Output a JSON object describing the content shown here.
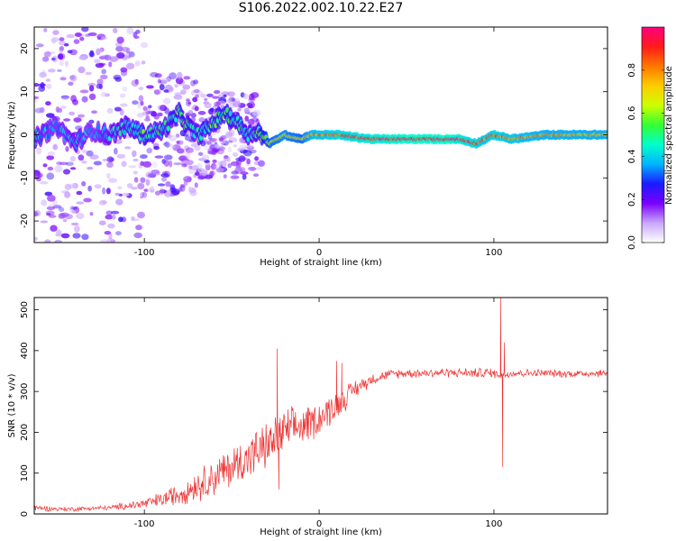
{
  "title": "S106.2022.002.10.22.E27",
  "colors": {
    "snr_line": "#ee3333",
    "frame": "#000000",
    "background": "#ffffff"
  },
  "chart_data": [
    {
      "type": "heatmap",
      "title": "S106.2022.002.10.22.E27",
      "xlabel": "Height of straight line (km)",
      "ylabel": "Frequency (Hz)",
      "xlim": [
        -163,
        165
      ],
      "ylim": [
        -25,
        25
      ],
      "xticks": [
        -100,
        0,
        100
      ],
      "yticks": [
        -20,
        -10,
        0,
        10,
        20
      ],
      "grid": false,
      "colorbar": {
        "label": "Normalized spectral amplitude",
        "range": [
          0,
          1
        ],
        "ticks": [
          0.0,
          0.2,
          0.4,
          0.6,
          0.8
        ],
        "colormap": [
          "#ffffff",
          "#c9a6ff",
          "#7a00ff",
          "#1a1aff",
          "#00b4ff",
          "#00ffcc",
          "#33ff33",
          "#ccff00",
          "#ffcc00",
          "#ff7700",
          "#ff1a1a",
          "#ff0080"
        ]
      },
      "ridge": {
        "description_points_x": [
          -163,
          -150,
          -140,
          -130,
          -120,
          -110,
          -100,
          -90,
          -85,
          -80,
          -75,
          -70,
          -65,
          -60,
          -55,
          -50,
          -45,
          -40,
          -35,
          -32,
          -28,
          -20,
          -10,
          -5,
          0,
          10,
          30,
          50,
          75,
          80,
          90,
          95,
          100,
          110,
          130,
          165
        ],
        "description_points_freq": [
          -1,
          2,
          -2,
          1,
          0,
          2,
          0,
          1,
          3,
          5,
          2,
          0,
          1,
          3,
          5,
          4,
          2,
          0,
          1,
          -1,
          -2,
          0,
          -1,
          0,
          0,
          0,
          -1,
          -1,
          -1,
          -1,
          -2,
          -1,
          0,
          -1,
          0,
          0
        ],
        "peak_amplitude": [
          0.4,
          0.35,
          0.4,
          0.35,
          0.4,
          0.45,
          0.5,
          0.45,
          0.5,
          0.55,
          0.5,
          0.45,
          0.5,
          0.5,
          0.55,
          0.5,
          0.5,
          0.45,
          0.5,
          0.6,
          0.7,
          0.75,
          0.7,
          0.8,
          0.85,
          0.9,
          0.95,
          1.0,
          1.0,
          0.95,
          0.9,
          0.85,
          0.9,
          0.85,
          0.8,
          0.8
        ]
      }
    },
    {
      "type": "line",
      "xlabel": "Height of straight line (km)",
      "ylabel": "SNR (10 * v/v)",
      "xlim": [
        -163,
        165
      ],
      "ylim": [
        0,
        530
      ],
      "xticks": [
        -100,
        0,
        100
      ],
      "yticks": [
        0,
        100,
        200,
        300,
        400,
        500
      ],
      "grid": false,
      "series": [
        {
          "x": [
            -163,
            -150,
            -140,
            -130,
            -120,
            -110,
            -100,
            -90,
            -80,
            -70,
            -60,
            -50,
            -40,
            -30,
            -20,
            -10,
            0,
            10,
            20,
            30,
            40,
            50,
            60,
            70,
            80,
            90,
            95,
            100,
            105,
            110,
            120,
            130,
            140,
            150,
            165
          ],
          "values": [
            15,
            12,
            12,
            14,
            15,
            20,
            25,
            35,
            50,
            70,
            90,
            115,
            140,
            165,
            200,
            215,
            235,
            265,
            305,
            330,
            342,
            345,
            345,
            346,
            346,
            345,
            346,
            344,
            340,
            345,
            345,
            345,
            343,
            344,
            345
          ],
          "noise_amplitude": [
            8,
            6,
            6,
            6,
            6,
            10,
            15,
            20,
            30,
            40,
            50,
            55,
            60,
            60,
            60,
            50,
            45,
            40,
            25,
            15,
            12,
            12,
            12,
            12,
            12,
            12,
            15,
            12,
            12,
            12,
            10,
            10,
            10,
            10,
            10
          ]
        }
      ],
      "spikes": [
        {
          "x": -24,
          "y": 405
        },
        {
          "x": -23,
          "y": 60
        },
        {
          "x": 10,
          "y": 375
        },
        {
          "x": 13,
          "y": 370
        },
        {
          "x": 104,
          "y": 530
        },
        {
          "x": 105,
          "y": 115
        },
        {
          "x": 106,
          "y": 420
        }
      ]
    }
  ]
}
